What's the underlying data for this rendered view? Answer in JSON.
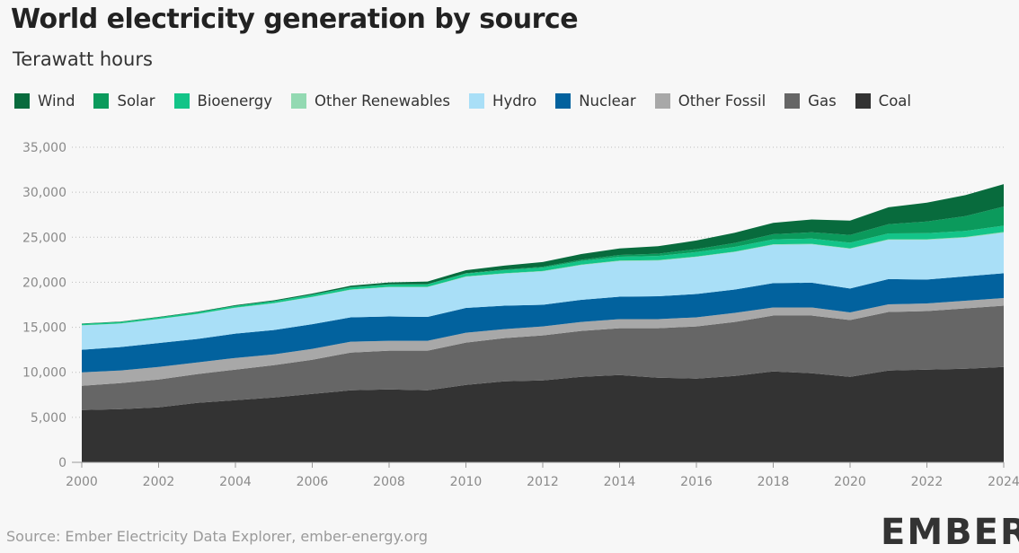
{
  "header": {
    "title": "World electricity generation by source",
    "subtitle": "Terawatt hours"
  },
  "footer": {
    "source": "Source: Ember Electricity Data Explorer, ember-energy.org",
    "logo_text": "EMBER"
  },
  "chart_data": {
    "type": "area",
    "stacked": true,
    "title": "World electricity generation by source",
    "subtitle": "Terawatt hours",
    "xlabel": "",
    "ylabel": "",
    "xlim": [
      2000,
      2024
    ],
    "ylim": [
      0,
      35000
    ],
    "grid": "horizontal dotted",
    "legend_placement": "top-left",
    "x_ticks": [
      "2000",
      "2002",
      "2004",
      "2006",
      "2008",
      "2010",
      "2012",
      "2014",
      "2016",
      "2018",
      "2020",
      "2022",
      "2024"
    ],
    "y_ticks": [
      "0",
      "5,000",
      "10,000",
      "15,000",
      "20,000",
      "25,000",
      "30,000",
      "35,000"
    ],
    "x": [
      2000,
      2001,
      2002,
      2003,
      2004,
      2005,
      2006,
      2007,
      2008,
      2009,
      2010,
      2011,
      2012,
      2013,
      2014,
      2015,
      2016,
      2017,
      2018,
      2019,
      2020,
      2021,
      2022,
      2023,
      2024
    ],
    "series": [
      {
        "name": "Coal",
        "color": "#333333",
        "values": [
          5800,
          5900,
          6100,
          6600,
          6900,
          7200,
          7600,
          8000,
          8100,
          8000,
          8600,
          9000,
          9100,
          9500,
          9700,
          9400,
          9300,
          9600,
          10100,
          9900,
          9500,
          10200,
          10300,
          10400,
          10600
        ]
      },
      {
        "name": "Gas",
        "color": "#666666",
        "values": [
          2700,
          2900,
          3100,
          3200,
          3400,
          3600,
          3800,
          4200,
          4300,
          4400,
          4700,
          4800,
          5000,
          5100,
          5200,
          5500,
          5800,
          6000,
          6200,
          6400,
          6300,
          6500,
          6500,
          6700,
          6800
        ]
      },
      {
        "name": "Other Fossil",
        "color": "#a8a8a8",
        "values": [
          1500,
          1400,
          1400,
          1300,
          1300,
          1200,
          1200,
          1200,
          1100,
          1100,
          1100,
          1000,
          1000,
          1000,
          1000,
          1000,
          1000,
          1000,
          900,
          900,
          850,
          850,
          850,
          850,
          850
        ]
      },
      {
        "name": "Nuclear",
        "color": "#02629e",
        "values": [
          2500,
          2600,
          2650,
          2600,
          2700,
          2700,
          2750,
          2700,
          2700,
          2650,
          2750,
          2600,
          2400,
          2450,
          2500,
          2550,
          2600,
          2600,
          2700,
          2750,
          2650,
          2800,
          2650,
          2700,
          2750
        ]
      },
      {
        "name": "Hydro",
        "color": "#a9dff7",
        "values": [
          2700,
          2600,
          2650,
          2750,
          2850,
          2950,
          3000,
          3050,
          3250,
          3300,
          3450,
          3550,
          3700,
          3850,
          3950,
          3950,
          4100,
          4150,
          4250,
          4250,
          4400,
          4350,
          4400,
          4300,
          4500
        ]
      },
      {
        "name": "Other Renewables",
        "color": "#93d9b2",
        "values": [
          30,
          30,
          32,
          34,
          36,
          38,
          40,
          42,
          45,
          48,
          50,
          52,
          54,
          56,
          58,
          60,
          62,
          65,
          68,
          70,
          72,
          75,
          78,
          80,
          82
        ]
      },
      {
        "name": "Bioenergy",
        "color": "#13c488",
        "values": [
          150,
          160,
          170,
          180,
          190,
          210,
          220,
          240,
          260,
          280,
          320,
          340,
          370,
          400,
          430,
          460,
          490,
          520,
          550,
          580,
          620,
          650,
          670,
          680,
          700
        ]
      },
      {
        "name": "Solar",
        "color": "#0b9a5c",
        "values": [
          1,
          1,
          2,
          2,
          3,
          4,
          5,
          8,
          12,
          20,
          33,
          64,
          100,
          140,
          200,
          250,
          330,
          440,
          570,
          700,
          860,
          1030,
          1300,
          1630,
          2130
        ]
      },
      {
        "name": "Wind",
        "color": "#086b3d",
        "values": [
          30,
          40,
          50,
          60,
          80,
          100,
          130,
          170,
          220,
          280,
          340,
          440,
          520,
          640,
          710,
          830,
          960,
          1130,
          1270,
          1420,
          1600,
          1870,
          2100,
          2340,
          2490
        ]
      }
    ]
  }
}
